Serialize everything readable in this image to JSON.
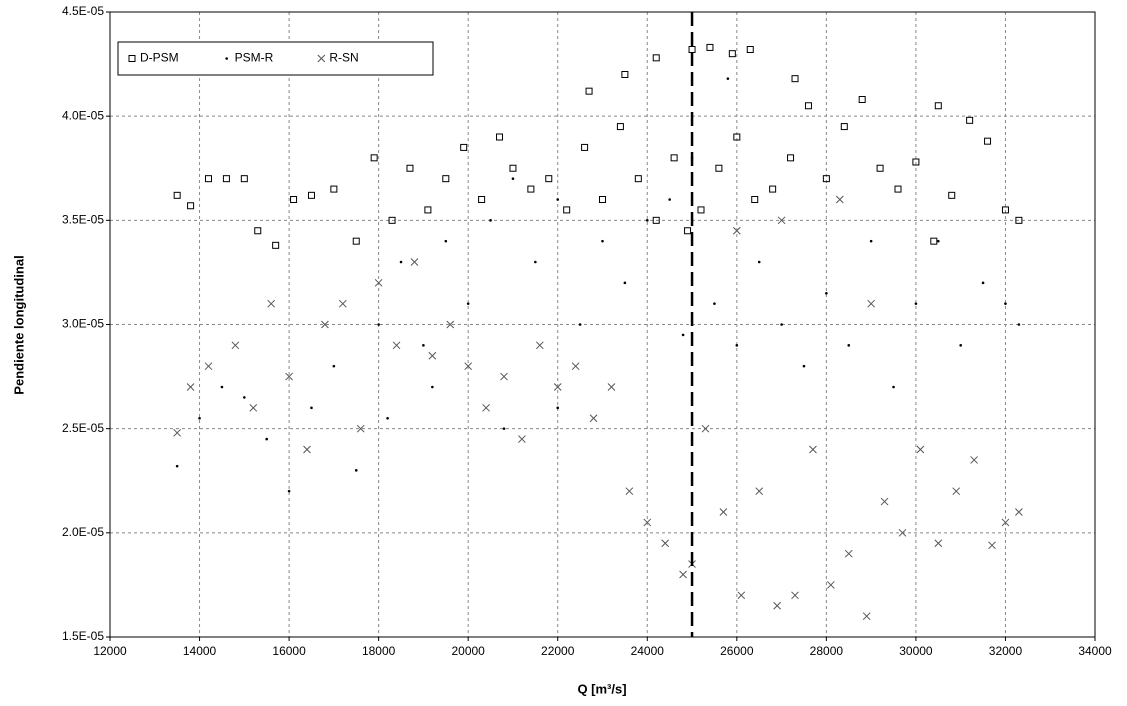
{
  "chart_data": {
    "type": "scatter",
    "x_label": "Q [m³/s]",
    "y_label": "Pendiente longitudinal",
    "xlim": [
      12000,
      34000
    ],
    "xticks": [
      12000,
      14000,
      16000,
      18000,
      20000,
      22000,
      24000,
      26000,
      28000,
      30000,
      32000,
      34000
    ],
    "ylim": [
      1.5e-05,
      4.5e-05
    ],
    "yticks": [
      {
        "value": 1.5e-05,
        "label": "1.5E-05"
      },
      {
        "value": 2e-05,
        "label": "2.0E-05"
      },
      {
        "value": 2.5e-05,
        "label": "2.5E-05"
      },
      {
        "value": 3e-05,
        "label": "3.0E-05"
      },
      {
        "value": 3.5e-05,
        "label": "3.5E-05"
      },
      {
        "value": 4e-05,
        "label": "4.0E-05"
      },
      {
        "value": 4.5e-05,
        "label": "4.5E-05"
      }
    ],
    "grid": true,
    "legend": "top-left",
    "vline": 25000,
    "series": [
      {
        "name": "D-PSM",
        "marker": "square",
        "color": "#000000",
        "x": [
          13500,
          13800,
          14200,
          14600,
          15000,
          15300,
          15700,
          16100,
          16500,
          17000,
          17500,
          17900,
          18300,
          18700,
          19100,
          19500,
          19900,
          20300,
          20700,
          21000,
          21400,
          21800,
          22200,
          22600,
          23000,
          23400,
          23800,
          24200,
          24600,
          24900,
          25200,
          25600,
          26000,
          26400,
          26800,
          27200,
          27600,
          28000,
          28400,
          28800,
          29200,
          29600,
          30000,
          30400,
          30800,
          31200,
          31600,
          32000,
          32300,
          22700,
          23500,
          24200,
          25000,
          25400,
          25900,
          26300,
          27300,
          30500
        ],
        "values": [
          3.62e-05,
          3.57e-05,
          3.7e-05,
          3.7e-05,
          3.7e-05,
          3.45e-05,
          3.38e-05,
          3.6e-05,
          3.62e-05,
          3.65e-05,
          3.4e-05,
          3.8e-05,
          3.5e-05,
          3.75e-05,
          3.55e-05,
          3.7e-05,
          3.85e-05,
          3.6e-05,
          3.9e-05,
          3.75e-05,
          3.65e-05,
          3.7e-05,
          3.55e-05,
          3.85e-05,
          3.6e-05,
          3.95e-05,
          3.7e-05,
          3.5e-05,
          3.8e-05,
          3.45e-05,
          3.55e-05,
          3.75e-05,
          3.9e-05,
          3.6e-05,
          3.65e-05,
          3.8e-05,
          4.05e-05,
          3.7e-05,
          3.95e-05,
          4.08e-05,
          3.75e-05,
          3.65e-05,
          3.78e-05,
          3.4e-05,
          3.62e-05,
          3.98e-05,
          3.88e-05,
          3.55e-05,
          3.5e-05,
          4.12e-05,
          4.2e-05,
          4.28e-05,
          4.32e-05,
          4.33e-05,
          4.3e-05,
          4.32e-05,
          4.18e-05,
          4.05e-05
        ]
      },
      {
        "name": "PSM-R",
        "marker": "dot",
        "color": "#000000",
        "x": [
          13500,
          14000,
          14500,
          15000,
          15500,
          16000,
          16500,
          17000,
          17500,
          18000,
          18500,
          19000,
          19500,
          20000,
          20500,
          21000,
          21500,
          22000,
          22500,
          23000,
          23500,
          24000,
          24500,
          25000,
          25500,
          26000,
          26500,
          27000,
          27500,
          28000,
          28500,
          29000,
          29500,
          30000,
          30500,
          31000,
          31500,
          32000,
          32300,
          25800,
          19200,
          20800,
          22000,
          18200,
          24800
        ],
        "values": [
          2.32e-05,
          2.55e-05,
          2.7e-05,
          2.65e-05,
          2.45e-05,
          2.2e-05,
          2.6e-05,
          2.8e-05,
          2.3e-05,
          3e-05,
          3.3e-05,
          2.9e-05,
          3.4e-05,
          3.1e-05,
          3.5e-05,
          3.7e-05,
          3.3e-05,
          3.6e-05,
          3e-05,
          3.4e-05,
          3.2e-05,
          3.5e-05,
          3.6e-05,
          3.8e-05,
          3.1e-05,
          2.9e-05,
          3.3e-05,
          3e-05,
          2.8e-05,
          3.15e-05,
          2.9e-05,
          3.4e-05,
          2.7e-05,
          3.1e-05,
          3.4e-05,
          2.9e-05,
          3.2e-05,
          3.1e-05,
          3e-05,
          4.18e-05,
          2.7e-05,
          2.5e-05,
          2.6e-05,
          2.55e-05,
          2.95e-05
        ]
      },
      {
        "name": "R-SN",
        "marker": "cross",
        "color": "#555555",
        "x": [
          13500,
          13800,
          14200,
          14800,
          15200,
          15600,
          16000,
          16400,
          16800,
          17200,
          17600,
          18000,
          18400,
          18800,
          19200,
          19600,
          20000,
          20400,
          20800,
          21200,
          21600,
          22000,
          22400,
          22800,
          23200,
          23600,
          24000,
          24400,
          24800,
          25000,
          25300,
          25700,
          26100,
          26500,
          26900,
          27300,
          27700,
          28100,
          28500,
          28900,
          29300,
          29700,
          30100,
          30500,
          30900,
          31300,
          31700,
          32000,
          32300,
          27000,
          28300,
          29000,
          26000
        ],
        "values": [
          2.48e-05,
          2.7e-05,
          2.8e-05,
          2.9e-05,
          2.6e-05,
          3.1e-05,
          2.75e-05,
          2.4e-05,
          3e-05,
          3.1e-05,
          2.5e-05,
          3.2e-05,
          2.9e-05,
          3.3e-05,
          2.85e-05,
          3e-05,
          2.8e-05,
          2.6e-05,
          2.75e-05,
          2.45e-05,
          2.9e-05,
          2.7e-05,
          2.8e-05,
          2.55e-05,
          2.7e-05,
          2.2e-05,
          2.05e-05,
          1.95e-05,
          1.8e-05,
          1.85e-05,
          2.5e-05,
          2.1e-05,
          1.7e-05,
          2.2e-05,
          1.65e-05,
          1.7e-05,
          2.4e-05,
          1.75e-05,
          1.9e-05,
          1.6e-05,
          2.15e-05,
          2e-05,
          2.4e-05,
          1.95e-05,
          2.2e-05,
          2.35e-05,
          1.94e-05,
          2.05e-05,
          2.1e-05,
          3.5e-05,
          3.6e-05,
          3.1e-05,
          3.45e-05
        ]
      }
    ]
  }
}
